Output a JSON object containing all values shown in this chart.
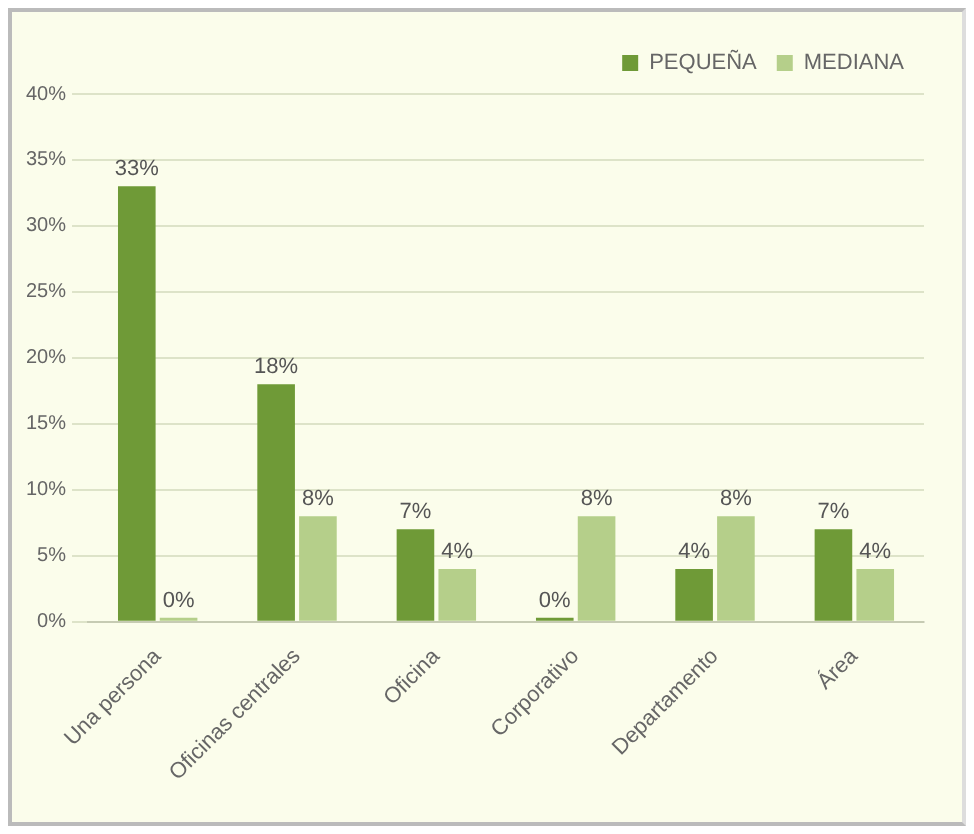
{
  "chart_data": {
    "type": "bar",
    "categories": [
      "Una persona",
      "Oficinas centrales",
      "Oficina",
      "Corporativo",
      "Departamento",
      "Área"
    ],
    "series": [
      {
        "name": "PEQUEÑA",
        "color": "#6f9a37",
        "values": [
          33,
          18,
          7,
          0,
          4,
          7
        ],
        "value_labels": [
          "33%",
          "18%",
          "7%",
          "0%",
          "4%",
          "7%"
        ]
      },
      {
        "name": "MEDIANA",
        "color": "#b5cf8a",
        "values": [
          0,
          8,
          4,
          8,
          8,
          4
        ],
        "value_labels": [
          "0%",
          "8%",
          "4%",
          "8%",
          "8%",
          "4%"
        ]
      }
    ],
    "ylim": [
      0,
      40
    ],
    "yticks": [
      {
        "value": 0,
        "label": "0%"
      },
      {
        "value": 5,
        "label": "5%"
      },
      {
        "value": 10,
        "label": "10%"
      },
      {
        "value": 15,
        "label": "15%"
      },
      {
        "value": 20,
        "label": "20%"
      },
      {
        "value": 25,
        "label": "25%"
      },
      {
        "value": 30,
        "label": "30%"
      },
      {
        "value": 35,
        "label": "35%"
      },
      {
        "value": 40,
        "label": "40%"
      }
    ],
    "grid": "y",
    "legend": "top right"
  }
}
